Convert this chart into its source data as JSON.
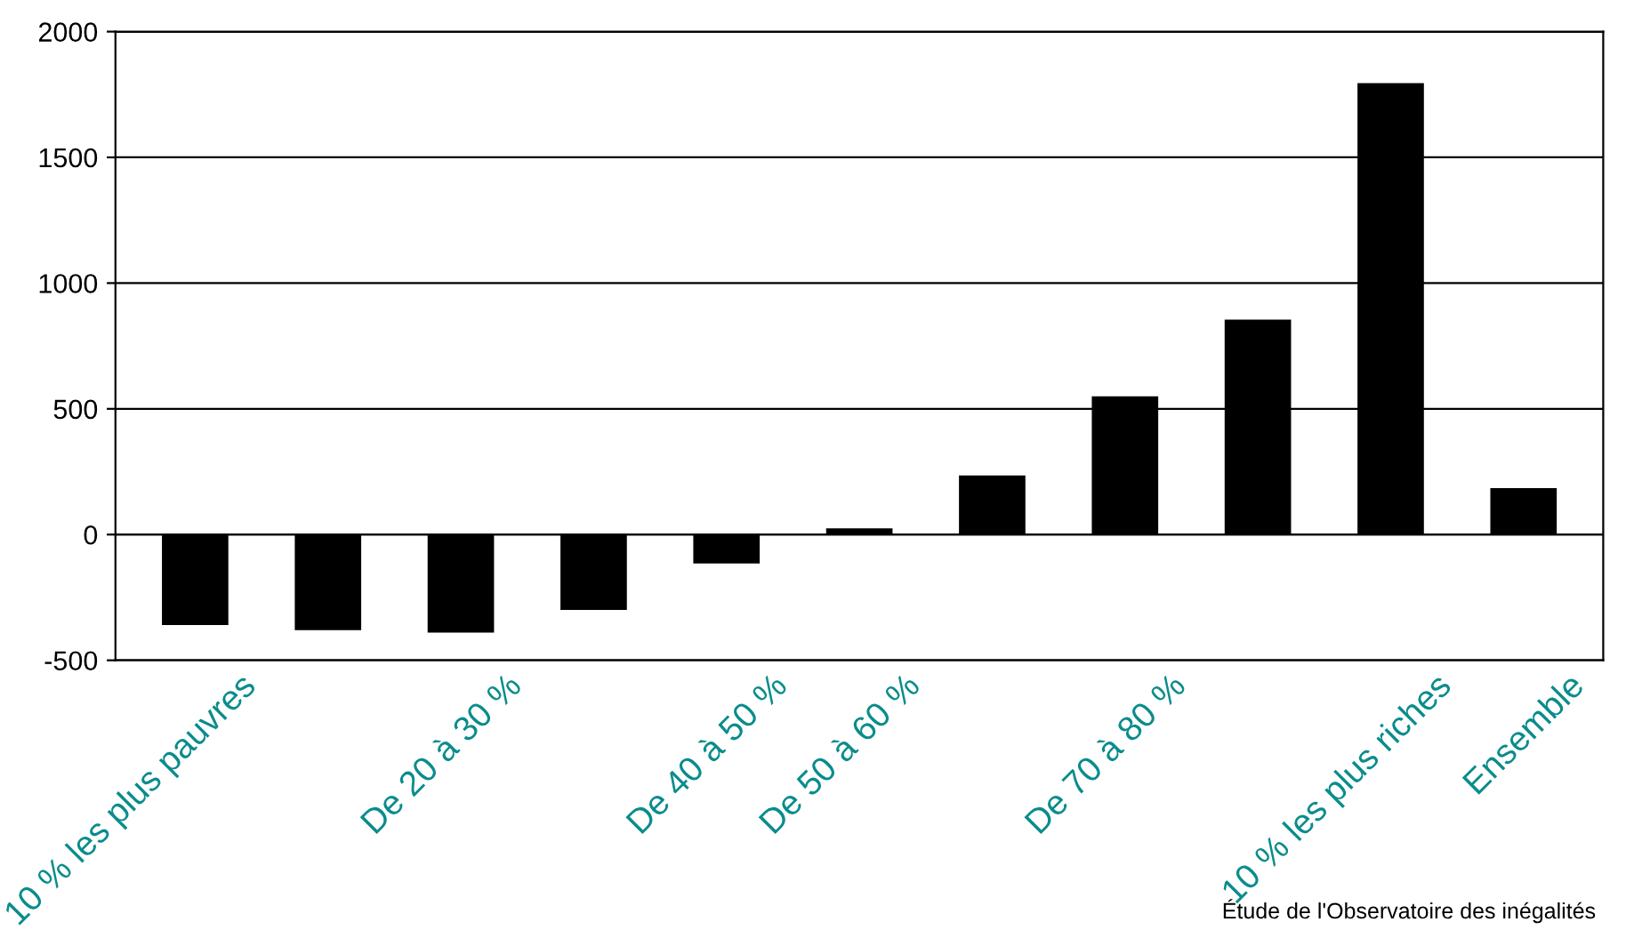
{
  "chart_data": {
    "type": "bar",
    "categories": [
      "10 % les plus pauvres",
      null,
      "De 20 à 30 %",
      null,
      "De 40 à 50 %",
      "De 50 à 60 %",
      null,
      "De 70 à 80 %",
      null,
      "10 % les plus riches",
      "Ensemble"
    ],
    "values": [
      -360,
      -380,
      -390,
      -300,
      -115,
      25,
      235,
      550,
      855,
      1795,
      185
    ],
    "color": "#000000",
    "ylim": [
      -500,
      2000
    ],
    "yticks": [
      -500,
      0,
      500,
      1000,
      1500,
      2000
    ],
    "grid": "y",
    "annotations": [
      "Étude de l'Observatoire des inégalités"
    ]
  }
}
